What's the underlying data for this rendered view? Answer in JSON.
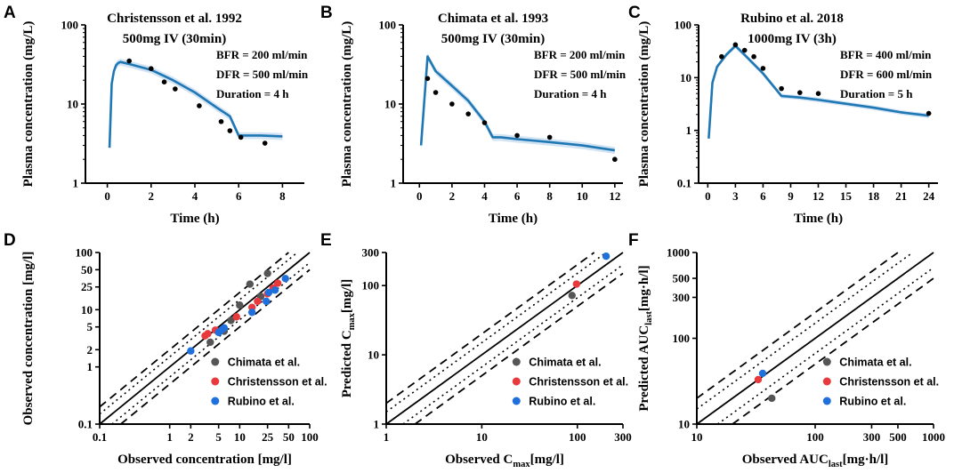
{
  "chart_data": [
    {
      "panel": "A",
      "type": "line",
      "title_lines": [
        "Christensson et al. 1992",
        "500mg IV (30min)"
      ],
      "annotations": [
        "BFR = 200 ml/min",
        "DFR = 500 ml/min",
        "Duration = 4 h"
      ],
      "xlabel": "Time (h)",
      "ylabel": "Plasma concentration (mg/L)",
      "xscale": "linear",
      "yscale": "log",
      "xlim": [
        -1,
        9
      ],
      "ylim": [
        1,
        100
      ],
      "xticks": [
        0,
        2,
        4,
        6,
        8
      ],
      "yticks": [
        1,
        10,
        100
      ],
      "series": [
        {
          "name": "Predicted",
          "kind": "line",
          "color": "#1f77b4",
          "x": [
            0.1,
            0.2,
            0.3,
            0.4,
            0.5,
            0.6,
            1,
            2,
            3,
            4,
            5,
            5.6,
            6,
            7,
            8
          ],
          "y": [
            2.8,
            18,
            26,
            31,
            33,
            34,
            32,
            27,
            20,
            14,
            9,
            7,
            4,
            4,
            3.9
          ]
        },
        {
          "name": "Observed",
          "kind": "points",
          "color": "#000000",
          "x": [
            1,
            2,
            2.6,
            3.1,
            4.2,
            5.2,
            5.6,
            6.1,
            7.2
          ],
          "y": [
            35,
            28,
            19,
            15.5,
            9.5,
            6,
            4.6,
            3.8,
            3.2
          ]
        }
      ]
    },
    {
      "panel": "B",
      "type": "line",
      "title_lines": [
        "Chimata et al.  1993",
        "500mg IV (30min)"
      ],
      "annotations": [
        "BFR = 200 ml/min",
        "DFR = 500 ml/min",
        "Duration = 4 h"
      ],
      "xlabel": "Time (h)",
      "ylabel": "Plasma concentration (mg/L)",
      "xscale": "linear",
      "yscale": "log",
      "xlim": [
        -1,
        12.5
      ],
      "ylim": [
        1,
        100
      ],
      "xticks": [
        0,
        2,
        4,
        6,
        8,
        10,
        12
      ],
      "yticks": [
        1,
        10,
        100
      ],
      "series": [
        {
          "name": "Predicted",
          "kind": "line",
          "color": "#1f77b4",
          "x": [
            0.1,
            0.5,
            1,
            2,
            3,
            4,
            4.5,
            5,
            6,
            8,
            10,
            12
          ],
          "y": [
            3,
            40,
            26,
            17,
            11,
            6,
            3.8,
            3.8,
            3.6,
            3.3,
            3.0,
            2.6
          ]
        },
        {
          "name": "Observed",
          "kind": "points",
          "color": "#000000",
          "x": [
            0.5,
            1,
            2,
            3,
            4,
            6,
            8,
            12
          ],
          "y": [
            21,
            14,
            10,
            7.5,
            5.8,
            4.0,
            3.8,
            2.0
          ]
        }
      ]
    },
    {
      "panel": "C",
      "type": "line",
      "title_lines": [
        "Rubino et al. 2018",
        "1000mg IV (3h)"
      ],
      "annotations": [
        "BFR = 400 ml/min",
        "DFR = 600 ml/min",
        "Duration = 5 h"
      ],
      "xlabel": "Time (h)",
      "ylabel": "Plasma concentration (mg/L)",
      "xscale": "linear",
      "yscale": "log",
      "xlim": [
        -1,
        25
      ],
      "ylim": [
        0.1,
        100
      ],
      "xticks": [
        0,
        3,
        6,
        9,
        12,
        15,
        18,
        21,
        24
      ],
      "yticks": [
        0.1,
        1,
        10,
        100
      ],
      "series": [
        {
          "name": "Predicted",
          "kind": "line",
          "color": "#1f77b4",
          "x": [
            0.1,
            0.5,
            1,
            2,
            3,
            4,
            6,
            8,
            10,
            12,
            15,
            18,
            21,
            24
          ],
          "y": [
            0.7,
            8,
            16,
            27,
            40,
            27,
            12,
            4.5,
            4.2,
            3.8,
            3.2,
            2.7,
            2.2,
            1.9
          ]
        },
        {
          "name": "Observed",
          "kind": "points",
          "color": "#000000",
          "x": [
            1.5,
            3,
            4,
            5,
            6,
            8,
            10,
            12,
            24
          ],
          "y": [
            25,
            42,
            33,
            25,
            15,
            6.2,
            5.2,
            5.0,
            2.1
          ]
        }
      ]
    },
    {
      "panel": "D",
      "type": "scatter",
      "xlabel": "Observed concentration [mg/l]",
      "ylabel": "Observed concentration [mg/l]",
      "xscale": "log",
      "yscale": "log",
      "xlim": [
        0.1,
        100
      ],
      "ylim": [
        0.1,
        100
      ],
      "xticks": [
        0.1,
        1,
        2,
        5,
        10,
        25,
        50,
        100
      ],
      "xtick_labels": [
        "0.1",
        "1",
        "2",
        "5",
        "10",
        "25",
        "50",
        "100"
      ],
      "yticks": [
        0.1,
        1,
        2,
        5,
        10,
        25,
        50,
        100
      ],
      "ytick_labels": [
        "0.1",
        "1",
        "2",
        "5",
        "10",
        "25",
        "50",
        "100"
      ],
      "reference_lines": [
        "identity",
        "1.5-fold",
        "2-fold"
      ],
      "legend": [
        "Chimata et al.",
        "Christensson et al.",
        "Rubino et al."
      ],
      "series": [
        {
          "name": "Chimata et al.",
          "color": "#555555",
          "x": [
            3.8,
            6.0,
            7.5,
            10,
            14,
            20,
            25
          ],
          "y": [
            2.7,
            4.2,
            6.5,
            12,
            28,
            17,
            43
          ]
        },
        {
          "name": "Christensson et al.",
          "color": "#e8393c",
          "x": [
            3.2,
            3.5,
            4.5,
            9,
            15,
            18,
            25,
            30,
            35
          ],
          "y": [
            3.5,
            3.8,
            4.4,
            7.5,
            11,
            14,
            19,
            24,
            29
          ]
        },
        {
          "name": "Rubino et al.",
          "color": "#1f6fdc",
          "x": [
            2.0,
            5.0,
            5.5,
            6.0,
            15,
            24,
            26,
            32,
            45
          ],
          "y": [
            1.9,
            4.0,
            4.4,
            4.8,
            9,
            14,
            20,
            22,
            35
          ]
        }
      ]
    },
    {
      "panel": "E",
      "type": "scatter",
      "xlabel_main": "Observed C",
      "xlabel_sub": "max",
      "xlabel_tail": "[mg/l]",
      "ylabel_main": "Predicted C",
      "ylabel_sub": "max",
      "ylabel_tail": "[mg/l]",
      "xscale": "log",
      "yscale": "log",
      "xlim": [
        1,
        300
      ],
      "ylim": [
        1,
        300
      ],
      "xticks": [
        1,
        10,
        100,
        300
      ],
      "xtick_labels": [
        "1",
        "10",
        "100",
        "300"
      ],
      "yticks": [
        1,
        10,
        100,
        300
      ],
      "ytick_labels": [
        "1",
        "10",
        "100",
        "300"
      ],
      "reference_lines": [
        "identity",
        "1.5-fold",
        "2-fold"
      ],
      "legend": [
        "Chimata et al.",
        "Christensson et al.",
        "Rubino et al."
      ],
      "series": [
        {
          "name": "Chimata et al.",
          "color": "#555555",
          "x": [
            88
          ],
          "y": [
            72
          ]
        },
        {
          "name": "Christensson et al.",
          "color": "#e8393c",
          "x": [
            98
          ],
          "y": [
            105
          ]
        },
        {
          "name": "Rubino et al.",
          "color": "#1f6fdc",
          "x": [
            200
          ],
          "y": [
            265
          ]
        }
      ]
    },
    {
      "panel": "F",
      "type": "scatter",
      "xlabel_main": "Observed AUC",
      "xlabel_sub": "last",
      "xlabel_tail": "[mg·h/l]",
      "ylabel_main": "Predicted AUC",
      "ylabel_sub": "last",
      "ylabel_tail": "[mg·h/l]",
      "xscale": "log",
      "yscale": "log",
      "xlim": [
        10,
        1000
      ],
      "ylim": [
        10,
        1000
      ],
      "xticks": [
        10,
        100,
        300,
        500,
        1000
      ],
      "xtick_labels": [
        "10",
        "100",
        "300",
        "500",
        "1000"
      ],
      "yticks": [
        10,
        100,
        300,
        500,
        1000
      ],
      "ytick_labels": [
        "10",
        "100",
        "300",
        "500",
        "1000"
      ],
      "reference_lines": [
        "identity",
        "1.5-fold",
        "2-fold"
      ],
      "legend": [
        "Chimata et al.",
        "Christensson et al.",
        "Rubino et al."
      ],
      "series": [
        {
          "name": "Chimata et al.",
          "color": "#555555",
          "x": [
            43
          ],
          "y": [
            20
          ]
        },
        {
          "name": "Christensson et al.",
          "color": "#e8393c",
          "x": [
            33
          ],
          "y": [
            33
          ]
        },
        {
          "name": "Rubino et al.",
          "color": "#1f6fdc",
          "x": [
            36
          ],
          "y": [
            39
          ]
        }
      ]
    }
  ]
}
